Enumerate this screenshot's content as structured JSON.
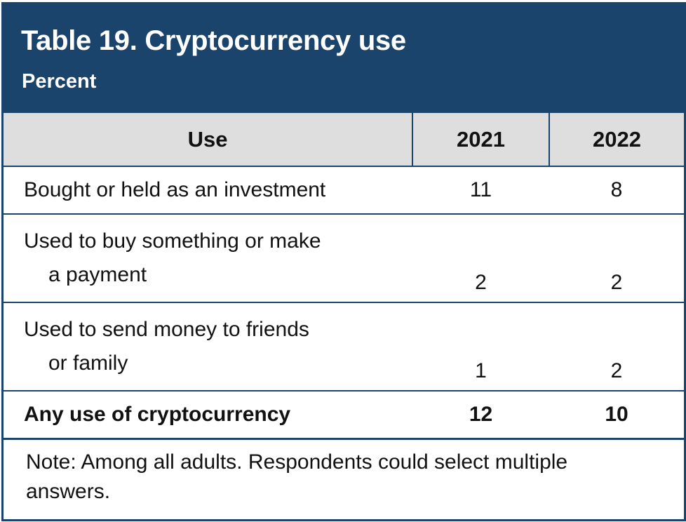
{
  "header": {
    "title": "Table 19. Cryptocurrency use",
    "subtitle": "Percent"
  },
  "table": {
    "columns": [
      "Use",
      "2021",
      "2022"
    ],
    "rows": [
      {
        "label_line1": "Bought or held as an investment",
        "label_line2": "",
        "v2021": "11",
        "v2022": "8"
      },
      {
        "label_line1": "Used to buy something or make",
        "label_line2": "a payment",
        "v2021": "2",
        "v2022": "2"
      },
      {
        "label_line1": "Used to send money to friends",
        "label_line2": "or family",
        "v2021": "1",
        "v2022": "2"
      }
    ],
    "total": {
      "label": "Any use of cryptocurrency",
      "v2021": "12",
      "v2022": "10"
    }
  },
  "note": "Note: Among all adults. Respondents could select multiple answers.",
  "colors": {
    "header_bg": "#1b446c",
    "column_header_bg": "#dedede"
  }
}
